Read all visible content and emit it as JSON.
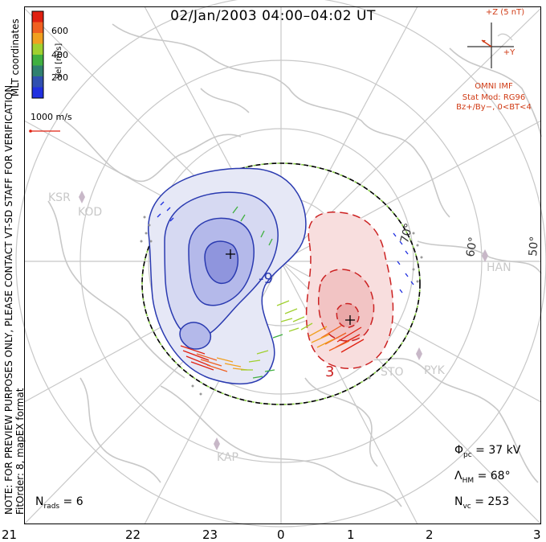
{
  "title": "02/Jan/2003 04:00–04:02 UT",
  "coord_label": "MLT coordinates",
  "note_line1": "NOTE: FOR PREVIEW PURPOSES ONLY, PLEASE CONTACT VT-SD STAFF FOR VERIFICATION.",
  "note_line2": "FitOrder: 8, mapEX format",
  "colorbar": {
    "label": "Vel [m/s]",
    "ticks": [
      "600",
      "400",
      "200"
    ],
    "colors": [
      "#e02010",
      "#f06020",
      "#f0a020",
      "#a0d030",
      "#40b040",
      "#308070",
      "#3050b0",
      "#2030e0"
    ]
  },
  "vector_scale": "1000 m/s",
  "imf": {
    "bz_label": "+Z (5 nT)",
    "by_label": "+Y",
    "source": "OMNI IMF",
    "model": "Stat Mod: RG96",
    "condition": "Bz+/By−, 0<BT<4"
  },
  "latitude_labels": [
    "70°",
    "60°",
    "50°"
  ],
  "stations": [
    "KSR",
    "KOD",
    "HAN",
    "STO",
    "PYK",
    "KAP"
  ],
  "contour_labels": [
    "-9",
    "3"
  ],
  "stats": {
    "phi_pc": "Φpc = 37 kV",
    "lambda_hm": "ΛHM = 68°",
    "n_vc": "Nvc = 253",
    "n_rads": "Nrads = 6"
  },
  "stat_text": {
    "phi_sym": "Φ",
    "phi_sub": "pc",
    "phi_val": " = 37 kV",
    "lam_sym": "Λ",
    "lam_sub": "HM",
    "lam_val": " = 68°",
    "nvc_sym": "N",
    "nvc_sub": "vc",
    "nvc_val": " = 253",
    "nr_sym": "N",
    "nr_sub": "rads",
    "nr_val": " = 6"
  },
  "mlt_ticks": [
    "21",
    "22",
    "23",
    "0",
    "1",
    "2",
    "3"
  ],
  "colors": {
    "negative_cell": "#2a3ab0",
    "positive_cell": "#cc2222",
    "boundary_dash": "#88cc44",
    "coast": "#c8c8c8",
    "accent_red": "#d03a14"
  }
}
